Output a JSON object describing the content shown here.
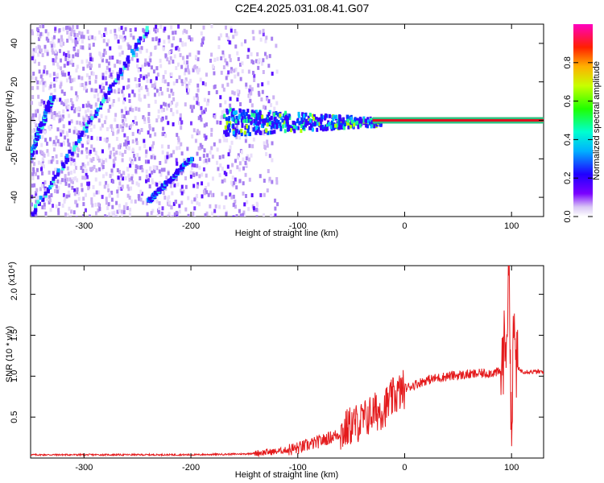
{
  "title": "C2E4.2025.031.08.41.G07",
  "chart_data": [
    {
      "type": "heatmap",
      "xlabel": "Height of straight line (km)",
      "ylabel": "Frequency (Hz)",
      "xlim": [
        -350,
        130
      ],
      "ylim": [
        -50,
        50
      ],
      "xticks": [
        -300,
        -200,
        -100,
        0,
        100
      ],
      "yticks": [
        -40,
        -20,
        0,
        20,
        40
      ],
      "colorbar": {
        "label": "Normalized spectral amplitude",
        "range": [
          0,
          1
        ],
        "ticks": [
          "0.0",
          "0.2",
          "0.4",
          "0.6",
          "0.8"
        ],
        "colormap": "rainbow"
      },
      "features": {
        "doppler_streaks": [
          {
            "x": [
              -350,
              -240
            ],
            "y": [
              -50,
              48
            ]
          },
          {
            "x": [
              -352,
              -330
            ],
            "y": [
              -20,
              12
            ]
          },
          {
            "x": [
              -240,
              -200
            ],
            "y": [
              -42,
              -20
            ]
          }
        ],
        "carrier_line": {
          "x": [
            -30,
            130
          ],
          "y": 0
        }
      }
    },
    {
      "type": "line",
      "xlabel": "Height of straight line (km)",
      "ylabel": "SNR (10 * v/v)",
      "y_multiplier": "(x10⁴)",
      "xlim": [
        -350,
        130
      ],
      "ylim": [
        0,
        2.35
      ],
      "xticks": [
        -300,
        -200,
        -100,
        0,
        100
      ],
      "yticks": [
        "0.5",
        "1.0",
        "1.5",
        "2.0"
      ],
      "series": [
        {
          "color": "#e41a1c",
          "x": [
            -350,
            -300,
            -250,
            -200,
            -150,
            -120,
            -100,
            -80,
            -60,
            -50,
            -40,
            -30,
            -20,
            -10,
            0,
            20,
            40,
            60,
            80,
            90,
            95,
            98,
            100,
            102,
            105,
            110,
            130
          ],
          "y": [
            0.04,
            0.04,
            0.04,
            0.04,
            0.05,
            0.08,
            0.12,
            0.2,
            0.3,
            0.4,
            0.45,
            0.55,
            0.6,
            0.75,
            0.85,
            0.95,
            1.0,
            1.02,
            1.04,
            1.05,
            1.5,
            2.3,
            0.15,
            1.6,
            1.1,
            1.06,
            1.05
          ]
        }
      ]
    }
  ]
}
